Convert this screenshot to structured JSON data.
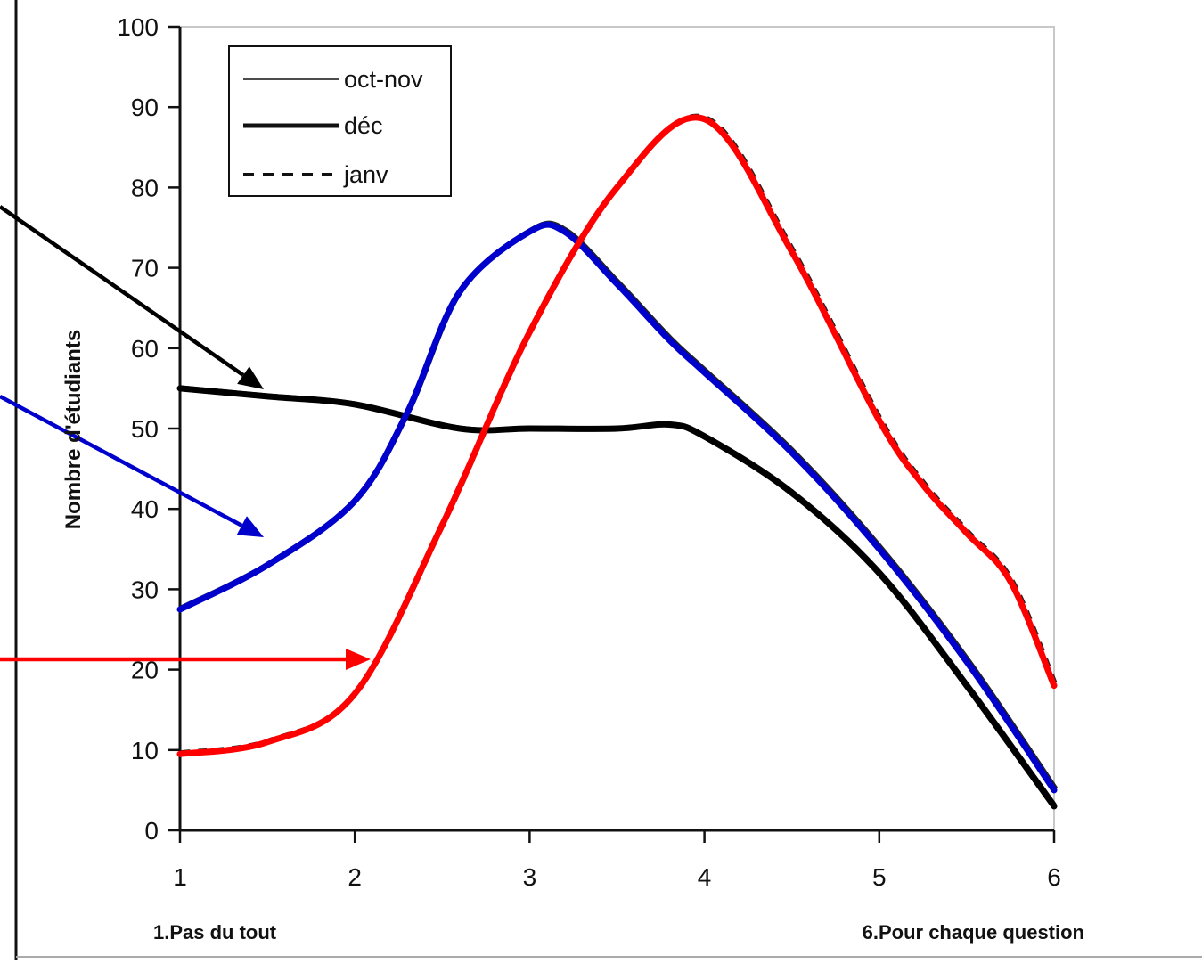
{
  "chart_data": {
    "type": "line",
    "x": [
      1,
      2,
      3,
      4,
      5,
      6
    ],
    "xlim": [
      1,
      6
    ],
    "ylim": [
      0,
      100
    ],
    "yticks": [
      0,
      10,
      20,
      30,
      40,
      50,
      60,
      70,
      80,
      90,
      100
    ],
    "xticks": [
      1,
      2,
      3,
      4,
      5,
      6
    ],
    "ylabel": "Nombre d'étudiants",
    "xlabel_left": "1.Pas du tout",
    "xlabel_right": "6.Pour chaque question",
    "grid": false,
    "legend_placement": "top-left",
    "series": [
      {
        "name": "oct-nov",
        "style": "thin-solid",
        "values": [
          55,
          53,
          50,
          50,
          33,
          3
        ]
      },
      {
        "name": "déc",
        "style": "thick-solid",
        "values": [
          28,
          43,
          75,
          57,
          37,
          5
        ]
      },
      {
        "name": "janv",
        "style": "dashed",
        "values": [
          10,
          17,
          60,
          88,
          50,
          20
        ]
      }
    ],
    "highlight_curves": [
      {
        "color": "#000000",
        "points": [
          [
            1,
            55
          ],
          [
            1.5,
            54
          ],
          [
            2,
            53
          ],
          [
            2.6,
            50
          ],
          [
            3,
            50
          ],
          [
            3.5,
            50
          ],
          [
            3.8,
            50.5
          ],
          [
            4,
            49
          ],
          [
            4.5,
            42
          ],
          [
            5,
            32
          ],
          [
            5.5,
            18
          ],
          [
            6,
            3
          ]
        ]
      },
      {
        "color": "#0000cc",
        "points": [
          [
            1,
            27.5
          ],
          [
            1.5,
            33
          ],
          [
            2,
            41
          ],
          [
            2.3,
            52
          ],
          [
            2.6,
            67
          ],
          [
            3,
            74.5
          ],
          [
            3.2,
            74.5
          ],
          [
            3.5,
            68
          ],
          [
            3.8,
            61
          ],
          [
            4,
            57
          ],
          [
            4.5,
            47
          ],
          [
            5,
            35
          ],
          [
            5.5,
            21
          ],
          [
            6,
            5
          ]
        ]
      },
      {
        "color": "#ff0000",
        "points": [
          [
            1,
            9.5
          ],
          [
            1.5,
            11
          ],
          [
            2,
            17
          ],
          [
            2.5,
            38
          ],
          [
            3,
            62
          ],
          [
            3.5,
            80
          ],
          [
            4,
            88.5
          ],
          [
            4.5,
            72
          ],
          [
            5,
            51
          ],
          [
            5.25,
            43
          ],
          [
            5.5,
            37
          ],
          [
            5.75,
            31
          ],
          [
            6,
            18
          ]
        ]
      }
    ],
    "arrows": [
      {
        "color": "#000000",
        "from": "left edge",
        "target_series": "oct-nov"
      },
      {
        "color": "#0000cc",
        "from": "left edge",
        "target_series": "déc"
      },
      {
        "color": "#ff0000",
        "from": "left edge",
        "target_series": "janv"
      }
    ]
  }
}
